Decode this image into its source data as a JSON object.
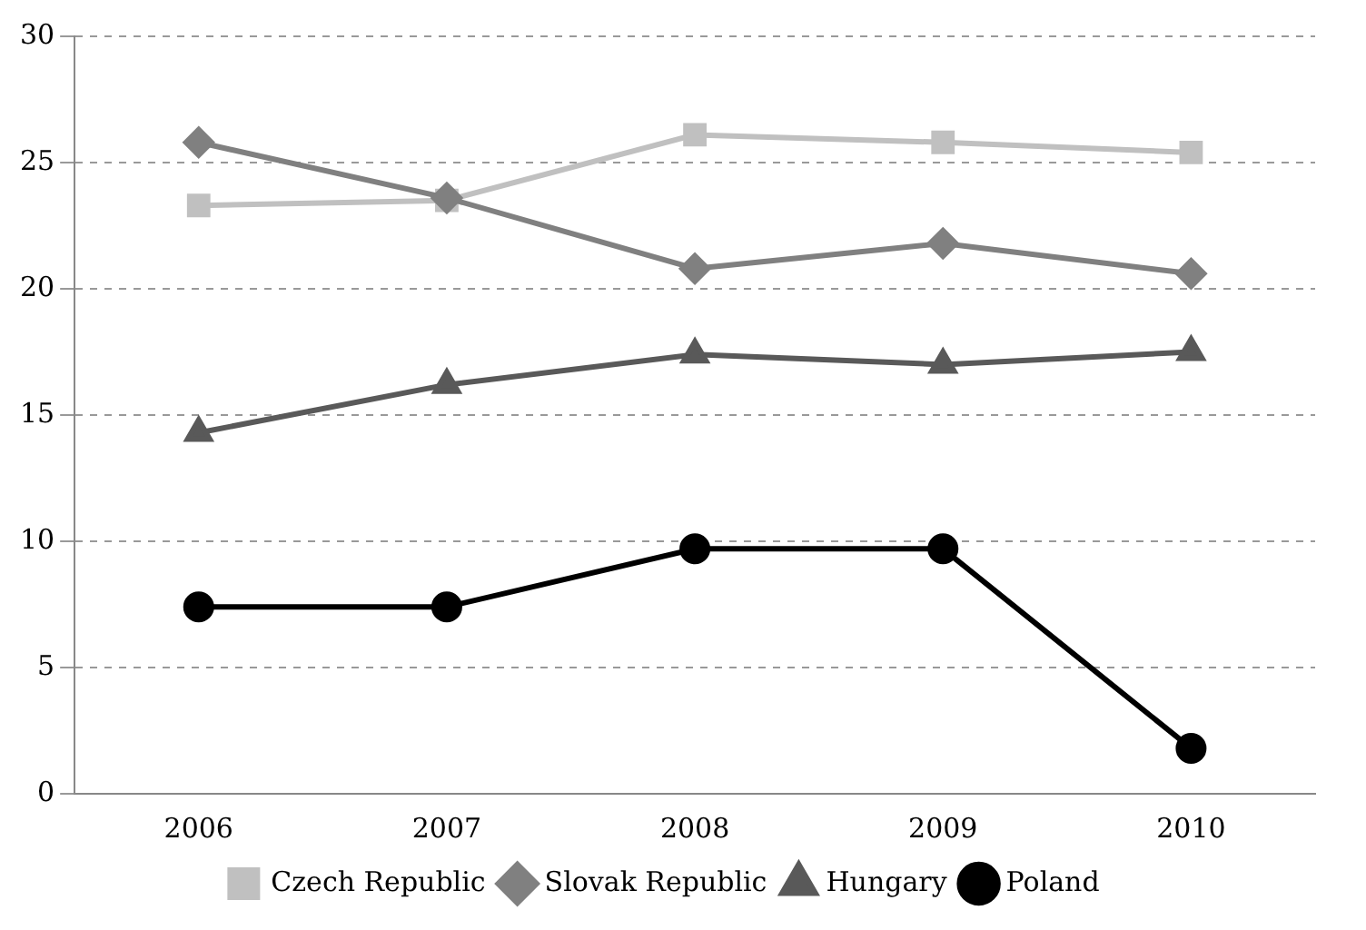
{
  "chart_data": {
    "type": "line",
    "categories": [
      "2006",
      "2007",
      "2008",
      "2009",
      "2010"
    ],
    "series": [
      {
        "name": "Czech Republic",
        "color": "#c0c0c0",
        "marker": "square",
        "values": [
          23.3,
          23.5,
          26.1,
          25.8,
          25.4
        ]
      },
      {
        "name": "Slovak Republic",
        "color": "#808080",
        "marker": "diamond",
        "values": [
          25.8,
          23.6,
          20.8,
          21.8,
          20.6
        ]
      },
      {
        "name": "Hungary",
        "color": "#595959",
        "marker": "triangle",
        "values": [
          14.3,
          16.2,
          17.4,
          17.0,
          17.5
        ]
      },
      {
        "name": "Poland",
        "color": "#000000",
        "marker": "circle",
        "values": [
          7.4,
          7.4,
          9.7,
          9.7,
          1.8
        ]
      }
    ],
    "ylim": [
      0,
      30
    ],
    "yticks": [
      0,
      5,
      10,
      15,
      20,
      25,
      30
    ],
    "grid": "y",
    "line_style": "solid",
    "legend": "bottom"
  }
}
